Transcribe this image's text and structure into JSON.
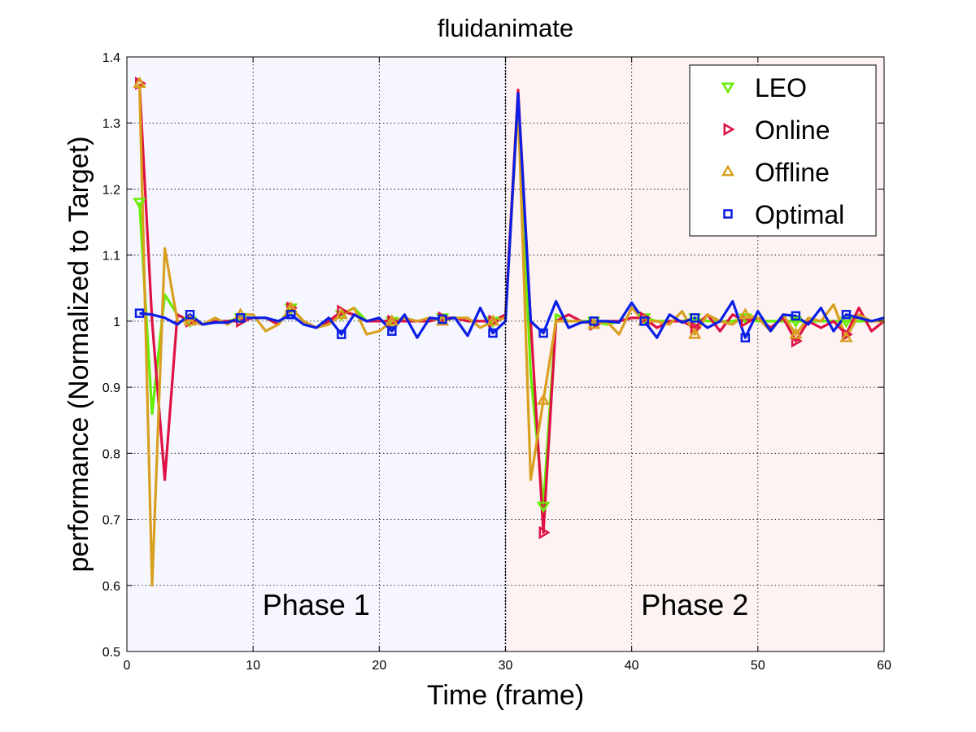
{
  "chart_data": {
    "type": "line",
    "title": "fluidanimate",
    "xlabel": "Time (frame)",
    "ylabel": "performance (Normalized to Target)",
    "xlim": [
      0,
      60
    ],
    "ylim": [
      0.5,
      1.4
    ],
    "xticks": [
      0,
      10,
      20,
      30,
      40,
      50,
      60
    ],
    "yticks": [
      0.5,
      0.6,
      0.7,
      0.8,
      0.9,
      1,
      1.1,
      1.2,
      1.3,
      1.4
    ],
    "xtick_labels": [
      "0",
      "10",
      "20",
      "30",
      "40",
      "50",
      "60"
    ],
    "ytick_labels": [
      "0.5",
      "0.6",
      "0.7",
      "0.8",
      "0.9",
      "1",
      "1.1",
      "1.2",
      "1.3",
      "1.4"
    ],
    "grid": true,
    "legend_position": "top-right",
    "phase_boundary": 30,
    "phases": [
      {
        "label": "Phase 1",
        "x_range": [
          0,
          30
        ],
        "x_center": 15,
        "y": 0.57,
        "color": "#f6f6ff"
      },
      {
        "label": "Phase 2",
        "x_range": [
          30,
          60
        ],
        "x_center": 45,
        "y": 0.57,
        "color": "#fdf3f3"
      }
    ],
    "series": [
      {
        "name": "LEO",
        "color": "#66ee00",
        "marker": "triangle-down",
        "marker_every": 4,
        "x": [
          1,
          2,
          3,
          4,
          5,
          6,
          7,
          8,
          9,
          10,
          11,
          12,
          13,
          14,
          15,
          16,
          17,
          18,
          19,
          20,
          21,
          22,
          23,
          24,
          25,
          26,
          27,
          28,
          29,
          30,
          31,
          32,
          33,
          34,
          35,
          36,
          37,
          38,
          39,
          40,
          41,
          42,
          43,
          44,
          45,
          46,
          47,
          48,
          49,
          50,
          51,
          52,
          53,
          54,
          55,
          56,
          57,
          58,
          59,
          60
        ],
        "y": [
          1.18,
          0.86,
          1.04,
          1.01,
          1.0,
          0.995,
          1.0,
          1.0,
          1.005,
          1.005,
          1.005,
          0.995,
          1.02,
          1.0,
          0.99,
          1.0,
          1.01,
          1.02,
          1.0,
          1.0,
          1.0,
          1.0,
          1.0,
          1.0,
          1.005,
          1.005,
          1.0,
          1.0,
          1.0,
          1.01,
          1.34,
          0.92,
          0.72,
          1.01,
          1.0,
          1.0,
          1.0,
          0.995,
          1.0,
          1.005,
          1.005,
          1.0,
          1.0,
          1.0,
          1.005,
          1.0,
          1.0,
          1.0,
          1.005,
          1.0,
          1.0,
          1.0,
          1.0,
          1.0,
          1.0,
          1.0,
          1.0,
          1.0,
          1.0,
          1.0
        ]
      },
      {
        "name": "Online",
        "color": "#dd1144",
        "marker": "triangle-right",
        "marker_every": 4,
        "x": [
          1,
          2,
          3,
          4,
          5,
          6,
          7,
          8,
          9,
          10,
          11,
          12,
          13,
          14,
          15,
          16,
          17,
          18,
          19,
          20,
          21,
          22,
          23,
          24,
          25,
          26,
          27,
          28,
          29,
          30,
          31,
          32,
          33,
          34,
          35,
          36,
          37,
          38,
          39,
          40,
          41,
          42,
          43,
          44,
          45,
          46,
          47,
          48,
          49,
          50,
          51,
          52,
          53,
          54,
          55,
          56,
          57,
          58,
          59,
          60
        ],
        "y": [
          1.36,
          1.0,
          0.76,
          1.01,
          1.0,
          0.995,
          1.0,
          1.0,
          1.0,
          1.005,
          1.005,
          0.995,
          1.02,
          1.0,
          0.99,
          1.0,
          1.015,
          1.01,
          1.0,
          1.0,
          1.0,
          1.0,
          1.0,
          1.0,
          1.005,
          1.005,
          1.0,
          1.0,
          1.0,
          1.01,
          1.35,
          1.0,
          0.68,
          1.0,
          1.01,
          1.0,
          0.995,
          1.0,
          1.0,
          1.005,
          1.005,
          0.99,
          1.0,
          1.0,
          0.99,
          1.01,
          0.985,
          1.01,
          1.0,
          1.005,
          0.99,
          1.005,
          0.97,
          1.0,
          0.99,
          1.0,
          0.98,
          1.02,
          0.985,
          1.0
        ]
      },
      {
        "name": "Offline",
        "color": "#d9a020",
        "marker": "triangle-up",
        "marker_every": 4,
        "x": [
          1,
          2,
          3,
          4,
          5,
          6,
          7,
          8,
          9,
          10,
          11,
          12,
          13,
          14,
          15,
          16,
          17,
          18,
          19,
          20,
          21,
          22,
          23,
          24,
          25,
          26,
          27,
          28,
          29,
          30,
          31,
          32,
          33,
          34,
          35,
          36,
          37,
          38,
          39,
          40,
          41,
          42,
          43,
          44,
          45,
          46,
          47,
          48,
          49,
          50,
          51,
          52,
          53,
          54,
          55,
          56,
          57,
          58,
          59,
          60
        ],
        "y": [
          1.36,
          0.6,
          1.11,
          1.0,
          1.0,
          0.995,
          1.005,
          0.995,
          1.01,
          1.01,
          0.985,
          0.995,
          1.02,
          1.0,
          0.99,
          0.995,
          1.01,
          1.02,
          0.98,
          0.985,
          1.0,
          1.005,
          1.0,
          1.005,
          1.0,
          1.005,
          1.005,
          0.99,
          1.0,
          1.005,
          1.33,
          0.76,
          0.88,
          1.0,
          1.0,
          1.0,
          0.995,
          1.0,
          0.98,
          1.02,
          1.0,
          1.0,
          0.995,
          1.015,
          0.98,
          1.01,
          1.0,
          0.995,
          1.01,
          1.005,
          0.985,
          1.01,
          0.98,
          1.005,
          1.0,
          1.025,
          0.975,
          1.01,
          1.0,
          1.0
        ]
      },
      {
        "name": "Optimal",
        "color": "#0a1ee6",
        "marker": "square",
        "marker_every": 4,
        "x": [
          1,
          2,
          3,
          4,
          5,
          6,
          7,
          8,
          9,
          10,
          11,
          12,
          13,
          14,
          15,
          16,
          17,
          18,
          19,
          20,
          21,
          22,
          23,
          24,
          25,
          26,
          27,
          28,
          29,
          30,
          31,
          32,
          33,
          34,
          35,
          36,
          37,
          38,
          39,
          40,
          41,
          42,
          43,
          44,
          45,
          46,
          47,
          48,
          49,
          50,
          51,
          52,
          53,
          54,
          55,
          56,
          57,
          58,
          59,
          60
        ],
        "y": [
          1.012,
          1.01,
          1.005,
          0.995,
          1.01,
          0.995,
          0.998,
          0.998,
          1.005,
          1.005,
          1.005,
          1.0,
          1.01,
          0.995,
          0.99,
          1.005,
          0.98,
          1.01,
          1.0,
          1.005,
          0.985,
          1.01,
          0.975,
          1.005,
          1.003,
          1.005,
          0.978,
          1.02,
          0.982,
          1.0,
          1.345,
          1.0,
          0.982,
          1.03,
          0.99,
          0.998,
          1.0,
          1.0,
          0.998,
          1.028,
          1.0,
          0.975,
          1.01,
          0.998,
          1.005,
          0.99,
          1.0,
          1.03,
          0.975,
          1.015,
          0.985,
          1.01,
          1.008,
          0.995,
          1.02,
          0.985,
          1.01,
          1.005,
          1.0,
          1.005
        ]
      }
    ]
  }
}
